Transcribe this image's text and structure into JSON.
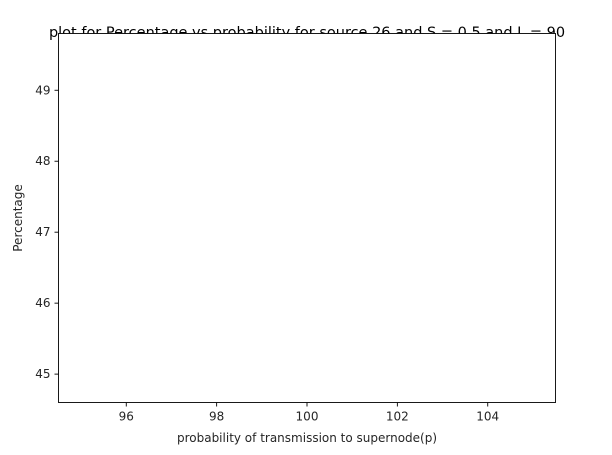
{
  "chart_data": {
    "type": "line",
    "title": "plot for Percentage vs probability for source 26 and S = 0.5 and L = 90",
    "xlabel": "probability of transmission to supernode(p)",
    "ylabel": "Percentage",
    "xlim": [
      94.5,
      105.5
    ],
    "ylim": [
      44.6,
      49.8
    ],
    "xticks": [
      96,
      98,
      100,
      102,
      104
    ],
    "yticks": [
      45,
      46,
      47,
      48,
      49
    ],
    "series": [],
    "grid": false
  }
}
